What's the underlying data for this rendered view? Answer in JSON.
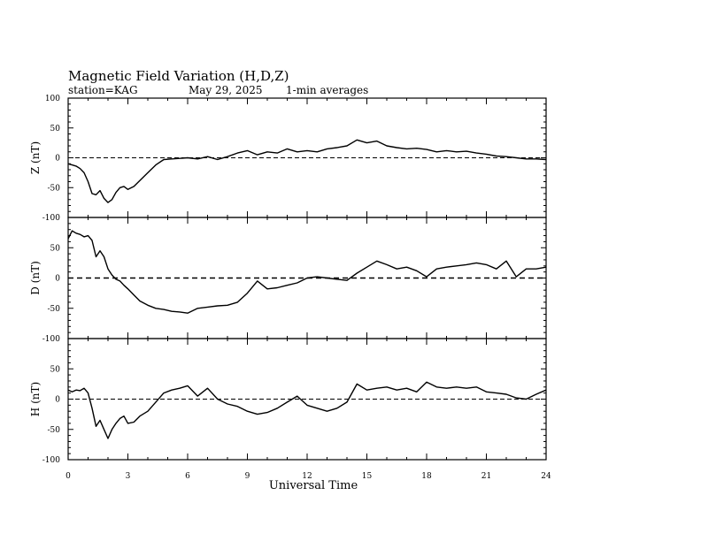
{
  "header": {
    "title": "Magnetic Field Variation (H,D,Z)",
    "station": "station=KAG",
    "date": "May 29, 2025",
    "averaging": "1-min averages"
  },
  "chart_data": [
    {
      "type": "line",
      "ylabel": "Z (nT)",
      "ylim": [
        -100,
        100
      ],
      "yticks": [
        "100",
        "50",
        "0",
        "-50",
        "-100"
      ],
      "xlim": [
        0,
        24
      ],
      "reference_line": 0,
      "x": [
        0,
        0.2,
        0.4,
        0.6,
        0.8,
        1.0,
        1.2,
        1.4,
        1.6,
        1.8,
        2.0,
        2.2,
        2.4,
        2.6,
        2.8,
        3.0,
        3.3,
        3.6,
        4.0,
        4.4,
        4.8,
        5.2,
        5.6,
        6.0,
        6.5,
        7.0,
        7.5,
        8.0,
        8.5,
        9.0,
        9.5,
        10.0,
        10.5,
        11.0,
        11.5,
        12.0,
        12.5,
        13.0,
        13.5,
        14.0,
        14.5,
        15.0,
        15.5,
        16.0,
        16.5,
        17.0,
        17.5,
        18.0,
        18.5,
        19.0,
        19.5,
        20.0,
        20.5,
        21.0,
        21.5,
        22.0,
        22.5,
        23.0,
        23.5,
        24.0
      ],
      "values": [
        -10,
        -12,
        -14,
        -18,
        -25,
        -40,
        -60,
        -62,
        -55,
        -68,
        -75,
        -70,
        -58,
        -50,
        -48,
        -53,
        -48,
        -38,
        -25,
        -12,
        -3,
        -2,
        -1,
        0,
        -2,
        2,
        -3,
        2,
        8,
        12,
        5,
        10,
        8,
        15,
        10,
        12,
        10,
        15,
        17,
        20,
        30,
        25,
        28,
        20,
        17,
        15,
        16,
        14,
        10,
        12,
        10,
        11,
        8,
        6,
        3,
        2,
        0,
        -2,
        -2,
        -3
      ]
    },
    {
      "type": "line",
      "ylabel": "D (nT)",
      "ylim": [
        -100,
        100
      ],
      "yticks": [
        "100",
        "50",
        "0",
        "-50",
        "-100"
      ],
      "xlim": [
        0,
        24
      ],
      "reference_line": 0,
      "x": [
        0,
        0.2,
        0.4,
        0.6,
        0.8,
        1.0,
        1.2,
        1.4,
        1.6,
        1.8,
        2.0,
        2.2,
        2.4,
        2.6,
        2.8,
        3.0,
        3.3,
        3.6,
        4.0,
        4.4,
        4.8,
        5.2,
        5.6,
        6.0,
        6.5,
        7.0,
        7.5,
        8.0,
        8.5,
        9.0,
        9.5,
        10.0,
        10.5,
        11.0,
        11.5,
        12.0,
        12.5,
        13.0,
        13.5,
        14.0,
        14.5,
        15.0,
        15.5,
        16.0,
        16.5,
        17.0,
        17.5,
        18.0,
        18.5,
        19.0,
        19.5,
        20.0,
        20.5,
        21.0,
        21.5,
        22.0,
        22.5,
        23.0,
        23.5,
        24.0
      ],
      "values": [
        65,
        78,
        74,
        72,
        68,
        70,
        62,
        35,
        45,
        35,
        15,
        5,
        -2,
        -5,
        -12,
        -18,
        -28,
        -38,
        -45,
        -50,
        -52,
        -55,
        -56,
        -58,
        -50,
        -48,
        -46,
        -45,
        -40,
        -25,
        -5,
        -18,
        -16,
        -12,
        -8,
        0,
        2,
        0,
        -2,
        -4,
        8,
        18,
        28,
        22,
        15,
        18,
        12,
        2,
        15,
        18,
        20,
        22,
        25,
        22,
        15,
        28,
        2,
        15,
        15,
        18
      ]
    },
    {
      "type": "line",
      "ylabel": "H (nT)",
      "ylim": [
        -100,
        100
      ],
      "yticks": [
        "100",
        "50",
        "0",
        "-50",
        "-100"
      ],
      "xlim": [
        0,
        24
      ],
      "xticks": [
        "0",
        "3",
        "6",
        "9",
        "12",
        "15",
        "18",
        "21",
        "24"
      ],
      "xlabel": "Universal Time",
      "reference_line": 0,
      "x": [
        0,
        0.2,
        0.4,
        0.6,
        0.8,
        1.0,
        1.2,
        1.4,
        1.6,
        1.8,
        2.0,
        2.2,
        2.4,
        2.6,
        2.8,
        3.0,
        3.3,
        3.6,
        4.0,
        4.4,
        4.8,
        5.2,
        5.6,
        6.0,
        6.5,
        7.0,
        7.5,
        8.0,
        8.5,
        9.0,
        9.5,
        10.0,
        10.5,
        11.0,
        11.5,
        12.0,
        12.5,
        13.0,
        13.5,
        14.0,
        14.5,
        15.0,
        15.5,
        16.0,
        16.5,
        17.0,
        17.5,
        18.0,
        18.5,
        19.0,
        19.5,
        20.0,
        20.5,
        21.0,
        21.5,
        22.0,
        22.5,
        23.0,
        23.5,
        24.0
      ],
      "values": [
        15,
        12,
        15,
        14,
        18,
        10,
        -15,
        -45,
        -35,
        -50,
        -65,
        -50,
        -40,
        -32,
        -28,
        -40,
        -38,
        -28,
        -20,
        -5,
        10,
        15,
        18,
        22,
        5,
        18,
        0,
        -8,
        -12,
        -20,
        -25,
        -22,
        -15,
        -5,
        5,
        -10,
        -15,
        -20,
        -15,
        -5,
        25,
        15,
        18,
        20,
        15,
        18,
        12,
        28,
        20,
        18,
        20,
        18,
        20,
        12,
        10,
        8,
        2,
        0,
        8,
        15
      ]
    }
  ]
}
